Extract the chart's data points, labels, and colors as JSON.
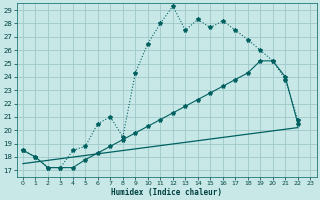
{
  "xlabel": "Humidex (Indice chaleur)",
  "bg_color": "#c8e8e8",
  "grid_color": "#a0c8c8",
  "line_color": "#006060",
  "xlim": [
    -0.5,
    23.5
  ],
  "ylim": [
    16.5,
    29.5
  ],
  "xticks": [
    0,
    1,
    2,
    3,
    4,
    5,
    6,
    7,
    8,
    9,
    10,
    11,
    12,
    13,
    14,
    15,
    16,
    17,
    18,
    19,
    20,
    21,
    22,
    23
  ],
  "yticks": [
    17,
    18,
    19,
    20,
    21,
    22,
    23,
    24,
    25,
    26,
    27,
    28,
    29
  ],
  "curve1_x": [
    0,
    1,
    2,
    3,
    4,
    5,
    6,
    7,
    8,
    9,
    10,
    11,
    12,
    13,
    14,
    15,
    16,
    17,
    18,
    19,
    20,
    21,
    22
  ],
  "curve1_y": [
    18.5,
    18.0,
    17.2,
    17.2,
    18.5,
    18.8,
    20.5,
    21.0,
    19.5,
    24.3,
    26.5,
    28.0,
    29.3,
    27.5,
    28.3,
    27.7,
    28.2,
    27.5,
    26.8,
    26.0,
    25.2,
    23.8,
    20.8
  ],
  "curve2_x": [
    0,
    1,
    2,
    3,
    4,
    5,
    6,
    7,
    8,
    9,
    10,
    11,
    12,
    13,
    14,
    15,
    16,
    17,
    18,
    19,
    20,
    21,
    22
  ],
  "curve2_y": [
    18.5,
    18.0,
    17.2,
    17.2,
    17.2,
    17.8,
    18.3,
    18.8,
    19.3,
    19.8,
    20.3,
    20.8,
    21.3,
    21.8,
    22.3,
    22.8,
    23.3,
    23.8,
    24.3,
    25.2,
    25.2,
    24.0,
    20.5
  ],
  "curve3_x": [
    0,
    22
  ],
  "curve3_y": [
    17.5,
    20.2
  ]
}
